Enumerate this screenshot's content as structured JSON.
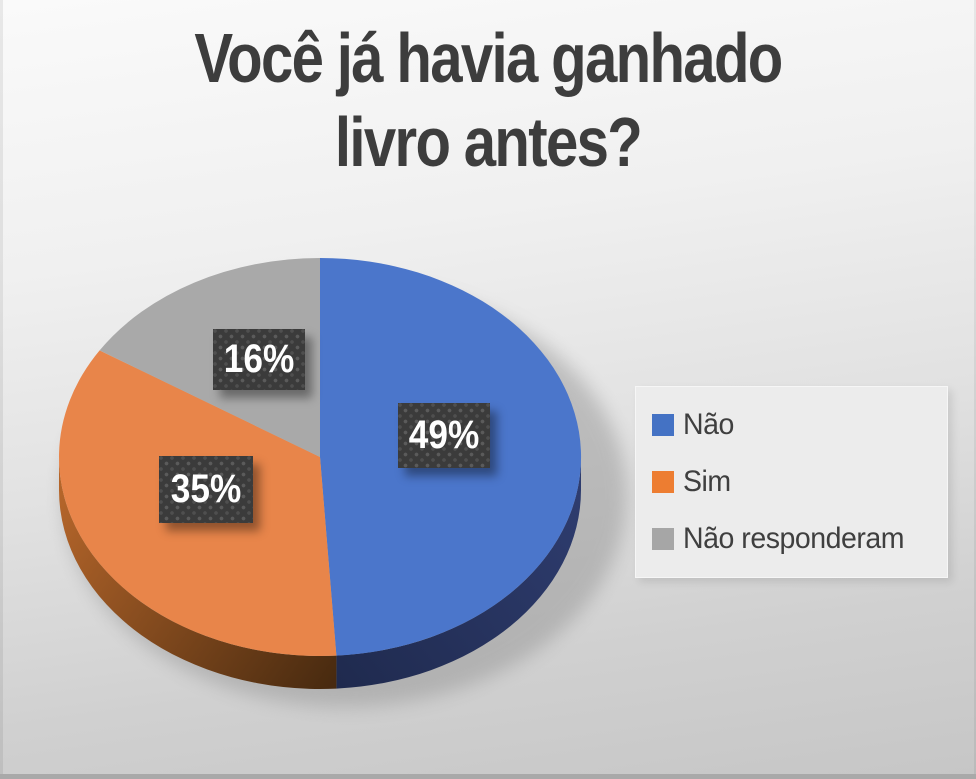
{
  "title_lines": [
    "Você já havia ganhado",
    "livro antes?"
  ],
  "chart_data": {
    "type": "pie",
    "title": "Você já havia ganhado livro antes?",
    "style": "3d-pie",
    "start_angle_deg": 0,
    "direction": "clockwise",
    "legend_position": "right",
    "total": 100,
    "slices": [
      {
        "label": "Não",
        "value": 49,
        "pct_label": "49%",
        "color": "#4B76CB",
        "legend_color": "#4472C4",
        "side_color_from": "#2E3C6E",
        "side_color_to": "#1F2A4E"
      },
      {
        "label": "Sim",
        "value": 35,
        "pct_label": "35%",
        "color": "#E8854A",
        "legend_color": "#ED7D31",
        "side_color_from": "#B4652A",
        "side_color_to": "#46290F"
      },
      {
        "label": "Não responderam",
        "value": 16,
        "pct_label": "16%",
        "color": "#A9A9A9",
        "legend_color": "#A6A6A6"
      }
    ],
    "data_label_style": {
      "bg": "#3B3B3B",
      "text": "#FFFFFF"
    },
    "title_color": "#3D3D3D",
    "legend_text_color": "#3F3F3F"
  }
}
